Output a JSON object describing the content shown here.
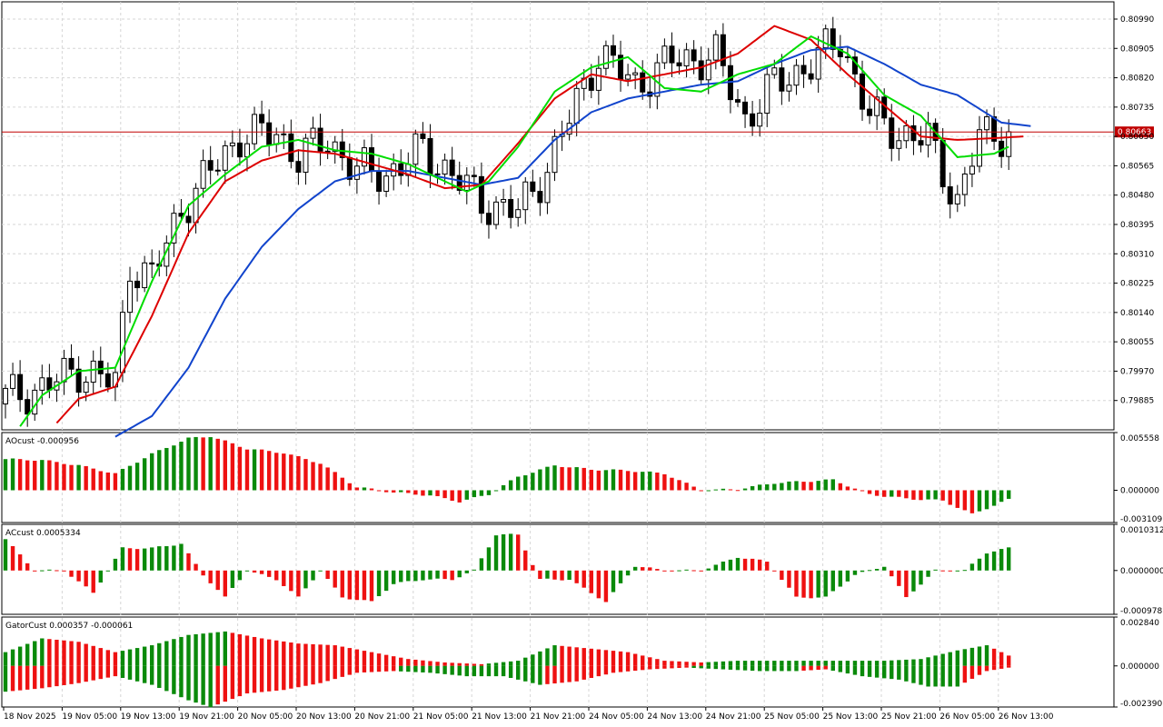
{
  "chart_data": [
    {
      "type": "candlestick",
      "pane": "main",
      "ylim": [
        0.798,
        0.8104
      ],
      "y_ticks": [
        "0.80990",
        "0.80905",
        "0.80820",
        "0.80735",
        "0.80650",
        "0.80565",
        "0.80480",
        "0.80395",
        "0.80310",
        "0.80225",
        "0.80140",
        "0.80055",
        "0.79970",
        "0.79885"
      ],
      "current_price": "0.80663",
      "x_labels": [
        "18 Nov 2025",
        "19 Nov 05:00",
        "19 Nov 13:00",
        "19 Nov 21:00",
        "20 Nov 05:00",
        "20 Nov 13:00",
        "20 Nov 21:00",
        "21 Nov 05:00",
        "21 Nov 13:00",
        "21 Nov 21:00",
        "24 Nov 05:00",
        "24 Nov 13:00",
        "24 Nov 21:00",
        "25 Nov 05:00",
        "25 Nov 13:00",
        "25 Nov 21:00",
        "26 Nov 05:00",
        "26 Nov 13:00"
      ],
      "n_bars": 138,
      "close_anchors": [
        [
          0,
          0.79895
        ],
        [
          5,
          0.7992
        ],
        [
          10,
          0.79975
        ],
        [
          15,
          0.79935
        ],
        [
          17,
          0.8028
        ],
        [
          20,
          0.8024
        ],
        [
          24,
          0.8044
        ],
        [
          29,
          0.80575
        ],
        [
          32,
          0.8065
        ],
        [
          37,
          0.8066
        ],
        [
          40,
          0.8059
        ],
        [
          44,
          0.8064
        ],
        [
          48,
          0.8055
        ],
        [
          52,
          0.8054
        ],
        [
          57,
          0.8061
        ],
        [
          61,
          0.8054
        ],
        [
          65,
          0.8046
        ],
        [
          70,
          0.8043
        ],
        [
          74,
          0.8056
        ],
        [
          78,
          0.8075
        ],
        [
          81,
          0.8089
        ],
        [
          86,
          0.808
        ],
        [
          91,
          0.8087
        ],
        [
          97,
          0.8088
        ],
        [
          101,
          0.807
        ],
        [
          105,
          0.808
        ],
        [
          110,
          0.8086
        ],
        [
          114,
          0.8093
        ],
        [
          118,
          0.8071
        ],
        [
          122,
          0.8066
        ],
        [
          126,
          0.8064
        ],
        [
          130,
          0.8046
        ],
        [
          133,
          0.8065
        ],
        [
          137,
          0.80663
        ]
      ],
      "alligator": {
        "jaw": {
          "color": "#1144cc",
          "points": [
            [
              15,
              0.7978
            ],
            [
              20,
              0.7984
            ],
            [
              25,
              0.7998
            ],
            [
              30,
              0.8018
            ],
            [
              35,
              0.8033
            ],
            [
              40,
              0.8044
            ],
            [
              45,
              0.8052
            ],
            [
              50,
              0.8055
            ],
            [
              55,
              0.8055
            ],
            [
              60,
              0.8053
            ],
            [
              65,
              0.8051
            ],
            [
              70,
              0.8053
            ],
            [
              75,
              0.8064
            ],
            [
              80,
              0.8072
            ],
            [
              85,
              0.8076
            ],
            [
              90,
              0.8078
            ],
            [
              95,
              0.808
            ],
            [
              100,
              0.8081
            ],
            [
              105,
              0.8086
            ],
            [
              110,
              0.809
            ],
            [
              115,
              0.8091
            ],
            [
              120,
              0.8086
            ],
            [
              125,
              0.808
            ],
            [
              130,
              0.8077
            ],
            [
              136,
              0.8069
            ],
            [
              140,
              0.8068
            ]
          ]
        },
        "teeth": {
          "color": "#dd0000",
          "points": [
            [
              7,
              0.7982
            ],
            [
              10,
              0.7989
            ],
            [
              15,
              0.79925
            ],
            [
              20,
              0.8013
            ],
            [
              25,
              0.8037
            ],
            [
              30,
              0.8052
            ],
            [
              35,
              0.8058
            ],
            [
              40,
              0.8061
            ],
            [
              45,
              0.806
            ],
            [
              50,
              0.8057
            ],
            [
              55,
              0.8054
            ],
            [
              60,
              0.805
            ],
            [
              65,
              0.8051
            ],
            [
              70,
              0.8063
            ],
            [
              75,
              0.8076
            ],
            [
              80,
              0.8083
            ],
            [
              85,
              0.8081
            ],
            [
              90,
              0.8083
            ],
            [
              95,
              0.8085
            ],
            [
              100,
              0.8089
            ],
            [
              105,
              0.8097
            ],
            [
              110,
              0.8093
            ],
            [
              115,
              0.8083
            ],
            [
              120,
              0.8074
            ],
            [
              125,
              0.8065
            ],
            [
              130,
              0.8064
            ],
            [
              135,
              0.80645
            ],
            [
              139,
              0.8065
            ]
          ]
        },
        "lips": {
          "color": "#00dd00",
          "points": [
            [
              2,
              0.7981
            ],
            [
              5,
              0.799
            ],
            [
              10,
              0.7997
            ],
            [
              15,
              0.7998
            ],
            [
              20,
              0.8023
            ],
            [
              25,
              0.8045
            ],
            [
              30,
              0.8054
            ],
            [
              35,
              0.8062
            ],
            [
              40,
              0.8064
            ],
            [
              45,
              0.8061
            ],
            [
              50,
              0.806
            ],
            [
              55,
              0.8057
            ],
            [
              60,
              0.8052
            ],
            [
              63,
              0.8049
            ],
            [
              66,
              0.8052
            ],
            [
              70,
              0.8062
            ],
            [
              75,
              0.8078
            ],
            [
              80,
              0.8085
            ],
            [
              85,
              0.8088
            ],
            [
              90,
              0.8079
            ],
            [
              95,
              0.8078
            ],
            [
              100,
              0.8083
            ],
            [
              105,
              0.8086
            ],
            [
              110,
              0.8094
            ],
            [
              115,
              0.8089
            ],
            [
              120,
              0.8077
            ],
            [
              125,
              0.8071
            ],
            [
              130,
              0.8059
            ],
            [
              135,
              0.806
            ],
            [
              137,
              0.8062
            ]
          ]
        }
      }
    },
    {
      "type": "bar",
      "pane": "ao",
      "title": "AOcust -0.000956",
      "ylim": [
        -0.003109,
        0.005558
      ],
      "y_ticks": [
        "0.005558",
        "0.000000",
        "-0.003109"
      ],
      "value_anchors": [
        [
          0,
          0.003
        ],
        [
          5,
          0.0029
        ],
        [
          10,
          0.0024
        ],
        [
          15,
          0.0016
        ],
        [
          20,
          0.0035
        ],
        [
          25,
          0.005
        ],
        [
          28,
          0.0052
        ],
        [
          33,
          0.004
        ],
        [
          38,
          0.0036
        ],
        [
          43,
          0.0026
        ],
        [
          48,
          0.0003
        ],
        [
          53,
          -0.0002
        ],
        [
          58,
          -0.0005
        ],
        [
          62,
          -0.0011
        ],
        [
          66,
          -0.0004
        ],
        [
          70,
          0.0013
        ],
        [
          75,
          0.0024
        ],
        [
          80,
          0.002
        ],
        [
          85,
          0.0019
        ],
        [
          90,
          0.0016
        ],
        [
          95,
          0.0
        ],
        [
          100,
          0.0001
        ],
        [
          105,
          0.0007
        ],
        [
          113,
          0.001
        ],
        [
          118,
          -0.0004
        ],
        [
          123,
          -0.0008
        ],
        [
          128,
          -0.001
        ],
        [
          132,
          -0.0023
        ],
        [
          137,
          -0.0009
        ]
      ]
    },
    {
      "type": "bar",
      "pane": "ac",
      "title": "ACcust 0.0005334",
      "ylim": [
        -0.0009787,
        0.0010312
      ],
      "y_ticks": [
        "0.0010312",
        "0.0000000",
        "-0.0009787"
      ],
      "value_anchors": [
        [
          0,
          0.0007
        ],
        [
          4,
          0.0
        ],
        [
          8,
          0.0
        ],
        [
          12,
          -0.0005
        ],
        [
          16,
          0.0005
        ],
        [
          20,
          0.0005
        ],
        [
          24,
          0.0006
        ],
        [
          27,
          -0.0001
        ],
        [
          30,
          -0.0006
        ],
        [
          33,
          0.0
        ],
        [
          37,
          -0.0002
        ],
        [
          40,
          -0.0006
        ],
        [
          43,
          0.0
        ],
        [
          46,
          -0.0006
        ],
        [
          50,
          -0.0007
        ],
        [
          53,
          -0.0003
        ],
        [
          57,
          -0.0002
        ],
        [
          61,
          -0.0002
        ],
        [
          64,
          0.0
        ],
        [
          67,
          0.0008
        ],
        [
          70,
          0.0008
        ],
        [
          73,
          -0.0002
        ],
        [
          77,
          -0.0002
        ],
        [
          82,
          -0.0007
        ],
        [
          86,
          0.0001
        ],
        [
          90,
          0.0
        ],
        [
          95,
          0.0
        ],
        [
          100,
          0.0003
        ],
        [
          104,
          0.0002
        ],
        [
          108,
          -0.0006
        ],
        [
          112,
          -0.0006
        ],
        [
          116,
          -0.0001
        ],
        [
          120,
          0.0001
        ],
        [
          123,
          -0.0006
        ],
        [
          127,
          0.0
        ],
        [
          131,
          0.0
        ],
        [
          134,
          0.0004
        ],
        [
          137,
          0.0005
        ]
      ]
    },
    {
      "type": "bar",
      "pane": "gator",
      "title": "GatorCust 0.000357 -0.000061",
      "ylim": [
        -0.00239,
        0.00284
      ],
      "y_ticks": [
        "0.002840",
        "0.000000",
        "-0.002390"
      ],
      "upper_anchors": [
        [
          0,
          0.0008
        ],
        [
          5,
          0.0016
        ],
        [
          10,
          0.0014
        ],
        [
          15,
          0.0008
        ],
        [
          20,
          0.0012
        ],
        [
          25,
          0.0018
        ],
        [
          30,
          0.002
        ],
        [
          35,
          0.0016
        ],
        [
          40,
          0.0013
        ],
        [
          45,
          0.0012
        ],
        [
          50,
          0.0008
        ],
        [
          55,
          0.0004
        ],
        [
          60,
          0.0002
        ],
        [
          65,
          0.0001
        ],
        [
          70,
          0.0003
        ],
        [
          75,
          0.0012
        ],
        [
          80,
          0.001
        ],
        [
          85,
          0.0008
        ],
        [
          90,
          0.0003
        ],
        [
          95,
          0.0002
        ],
        [
          100,
          0.0003
        ],
        [
          105,
          0.0003
        ],
        [
          110,
          0.0003
        ],
        [
          115,
          0.0003
        ],
        [
          120,
          0.0003
        ],
        [
          125,
          0.0004
        ],
        [
          130,
          0.0009
        ],
        [
          134,
          0.0012
        ],
        [
          138,
          0.0004
        ]
      ],
      "lower_anchors": [
        [
          0,
          -0.0015
        ],
        [
          5,
          -0.0013
        ],
        [
          10,
          -0.001
        ],
        [
          15,
          -0.0006
        ],
        [
          20,
          -0.0011
        ],
        [
          25,
          -0.002
        ],
        [
          28,
          -0.0024
        ],
        [
          33,
          -0.0016
        ],
        [
          38,
          -0.0014
        ],
        [
          43,
          -0.001
        ],
        [
          48,
          -0.0004
        ],
        [
          53,
          -0.0003
        ],
        [
          58,
          -0.0004
        ],
        [
          63,
          -0.0006
        ],
        [
          68,
          -0.0006
        ],
        [
          73,
          -0.0011
        ],
        [
          78,
          -0.0009
        ],
        [
          83,
          -0.0004
        ],
        [
          88,
          -0.0002
        ],
        [
          93,
          -0.0001
        ],
        [
          98,
          -0.0002
        ],
        [
          103,
          -0.0003
        ],
        [
          108,
          -0.0003
        ],
        [
          112,
          -0.0002
        ],
        [
          117,
          -0.0006
        ],
        [
          122,
          -0.0008
        ],
        [
          126,
          -0.0012
        ],
        [
          130,
          -0.0012
        ],
        [
          134,
          -0.0003
        ],
        [
          137,
          -0.0001
        ]
      ]
    }
  ]
}
